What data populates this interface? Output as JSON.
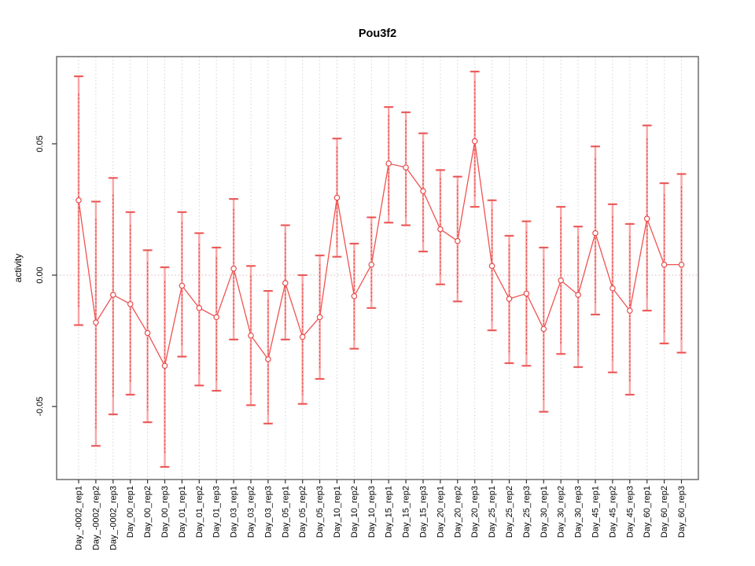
{
  "title": "Pou3f2",
  "ylabel": "activity",
  "chart_data": {
    "type": "scatter",
    "subtype": "points-with-error-bars-connected-by-line",
    "title": "Pou3f2",
    "xlabel": "",
    "ylabel": "activity",
    "ylim": [
      -0.0778,
      0.0832
    ],
    "grid": "vertical dotted gridline at every category; dotted horizontal line at y=0",
    "legend": "none",
    "x_tick_rotation": -90,
    "yticks": [
      {
        "value": 0.05,
        "label": "0.05"
      },
      {
        "value": 0.0,
        "label": "0.00"
      },
      {
        "value": -0.05,
        "label": "-0.05"
      }
    ],
    "categories": [
      "Day_-0002_rep1",
      "Day_-0002_rep2",
      "Day_-0002_rep3",
      "Day_00_rep1",
      "Day_00_rep2",
      "Day_00_rep3",
      "Day_01_rep1",
      "Day_01_rep2",
      "Day_01_rep3",
      "Day_03_rep1",
      "Day_03_rep2",
      "Day_03_rep3",
      "Day_05_rep1",
      "Day_05_rep2",
      "Day_05_rep3",
      "Day_10_rep1",
      "Day_10_rep2",
      "Day_10_rep3",
      "Day_15_rep1",
      "Day_15_rep2",
      "Day_15_rep3",
      "Day_20_rep1",
      "Day_20_rep2",
      "Day_20_rep3",
      "Day_25_rep1",
      "Day_25_rep2",
      "Day_25_rep3",
      "Day_30_rep1",
      "Day_30_rep2",
      "Day_30_rep3",
      "Day_45_rep1",
      "Day_45_rep2",
      "Day_45_rep3",
      "Day_60_rep1",
      "Day_60_rep2",
      "Day_60_rep3"
    ],
    "series": [
      {
        "name": "activity",
        "values": [
          0.0285,
          -0.018,
          -0.0075,
          -0.011,
          -0.022,
          -0.0345,
          -0.004,
          -0.0125,
          -0.016,
          0.0025,
          -0.023,
          -0.032,
          -0.003,
          -0.0235,
          -0.016,
          0.0295,
          -0.008,
          0.004,
          0.0425,
          0.041,
          0.032,
          0.0175,
          0.013,
          0.051,
          0.0035,
          -0.009,
          -0.007,
          -0.0205,
          -0.002,
          -0.0075,
          0.016,
          -0.005,
          -0.0135,
          0.0215,
          0.004,
          0.004
        ],
        "error_low": [
          -0.019,
          -0.065,
          -0.053,
          -0.0455,
          -0.056,
          -0.073,
          -0.031,
          -0.042,
          -0.044,
          -0.0245,
          -0.0495,
          -0.0565,
          -0.0245,
          -0.049,
          -0.0395,
          0.007,
          -0.028,
          -0.0125,
          0.02,
          0.019,
          0.009,
          -0.0035,
          -0.01,
          0.026,
          -0.021,
          -0.0335,
          -0.0345,
          -0.052,
          -0.03,
          -0.035,
          -0.015,
          -0.037,
          -0.0455,
          -0.0135,
          -0.026,
          -0.0295
        ],
        "error_high": [
          0.0757,
          0.028,
          0.037,
          0.024,
          0.0095,
          0.003,
          0.024,
          0.016,
          0.0105,
          0.029,
          0.0035,
          -0.006,
          0.019,
          0.0,
          0.0075,
          0.052,
          0.012,
          0.022,
          0.064,
          0.062,
          0.054,
          0.04,
          0.0375,
          0.0775,
          0.0285,
          0.015,
          0.0205,
          0.0105,
          0.026,
          0.0185,
          0.049,
          0.027,
          0.0195,
          0.057,
          0.035,
          0.0385
        ]
      }
    ],
    "colors": {
      "bar_outer": "#f8a6a6",
      "bar_inner": "#e84d4d",
      "cap": "#ef6a6a",
      "series_line": "#ef5350",
      "point_stroke": "#e84d4d",
      "point_fill": "#ffffff",
      "zero_line": "#ddb3b3",
      "grid": "#d2d2d2",
      "axis_box": "#555555",
      "tick": "#333333"
    }
  }
}
